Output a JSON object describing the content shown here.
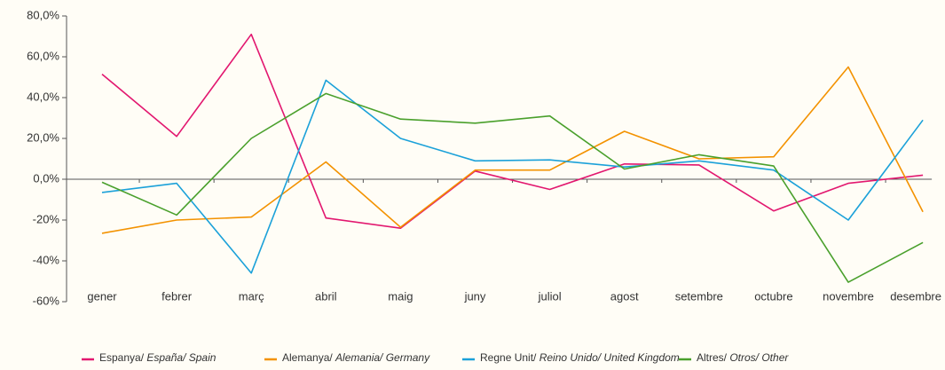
{
  "chart_data": {
    "type": "line",
    "categories": [
      "gener",
      "febrer",
      "març",
      "abril",
      "maig",
      "juny",
      "juliol",
      "agost",
      "setembre",
      "octubre",
      "novembre",
      "desembre"
    ],
    "ylim": [
      -60,
      80
    ],
    "yticks": [
      {
        "value": -60,
        "label": "-60%"
      },
      {
        "value": -40,
        "label": "-40%"
      },
      {
        "value": -20,
        "label": "-20%"
      },
      {
        "value": 0,
        "label": "0,0%"
      },
      {
        "value": 20,
        "label": "20,0%"
      },
      {
        "value": 40,
        "label": "40,0%"
      },
      {
        "value": 60,
        "label": "60,0%"
      },
      {
        "value": 80,
        "label": "80,0%"
      }
    ],
    "grid": false,
    "legend": "bottom",
    "series": [
      {
        "name": "Espanya/ España/ Spain",
        "color": "#e2176f",
        "values": [
          51.5,
          21,
          71,
          -19,
          -24,
          4,
          -5,
          7.5,
          7,
          -15.5,
          -2,
          2
        ]
      },
      {
        "name": "Alemanya/ Alemania/ Germany",
        "color": "#f39200",
        "values": [
          -26.5,
          -20,
          -18.5,
          8.5,
          -23.5,
          4.5,
          4.5,
          23.5,
          10,
          11,
          55,
          -16
        ]
      },
      {
        "name": "Regne Unit/ Reino Unido/ United Kingdom",
        "color": "#1ba1d9",
        "values": [
          -6.5,
          -2,
          -46,
          48.5,
          20,
          9,
          9.5,
          6,
          9,
          4.5,
          -20,
          29
        ]
      },
      {
        "name": "Altres/ Otros/ Other",
        "color": "#4aa02c",
        "values": [
          -1.5,
          -17.5,
          20,
          42,
          29.5,
          27.5,
          31,
          5,
          12,
          6.5,
          -50.5,
          -31
        ]
      }
    ]
  }
}
